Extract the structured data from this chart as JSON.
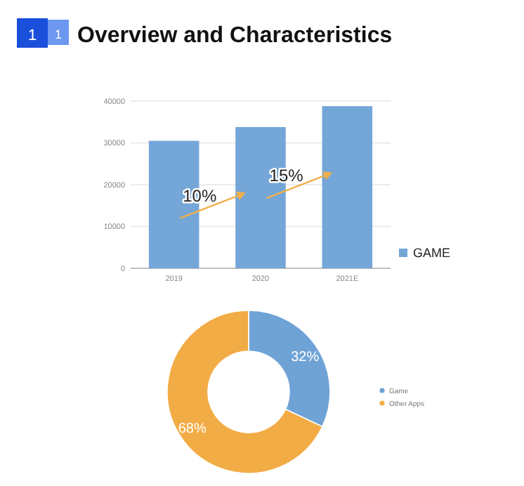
{
  "chart_data": [
    {
      "type": "bar",
      "title": "Overview and Characteristics",
      "categories": [
        "2019",
        "2020",
        "2021E"
      ],
      "series": [
        {
          "name": "GAME",
          "color": "#74a6d8",
          "values": [
            30500,
            33800,
            38800
          ]
        }
      ],
      "ylim": [
        0,
        40000
      ],
      "yticks": [
        0,
        10000,
        20000,
        30000,
        40000
      ],
      "grid": "y",
      "legend": "right",
      "annotations": [
        "1",
        "1",
        "10%",
        "15%"
      ]
    },
    {
      "type": "donut",
      "categories": [
        "Game",
        "Other Apps"
      ],
      "values": [
        32,
        68
      ],
      "colors": [
        "#6fa3d6",
        "#f2ac45"
      ],
      "value_labels": [
        "32%",
        "68%"
      ],
      "legend": "right"
    }
  ]
}
